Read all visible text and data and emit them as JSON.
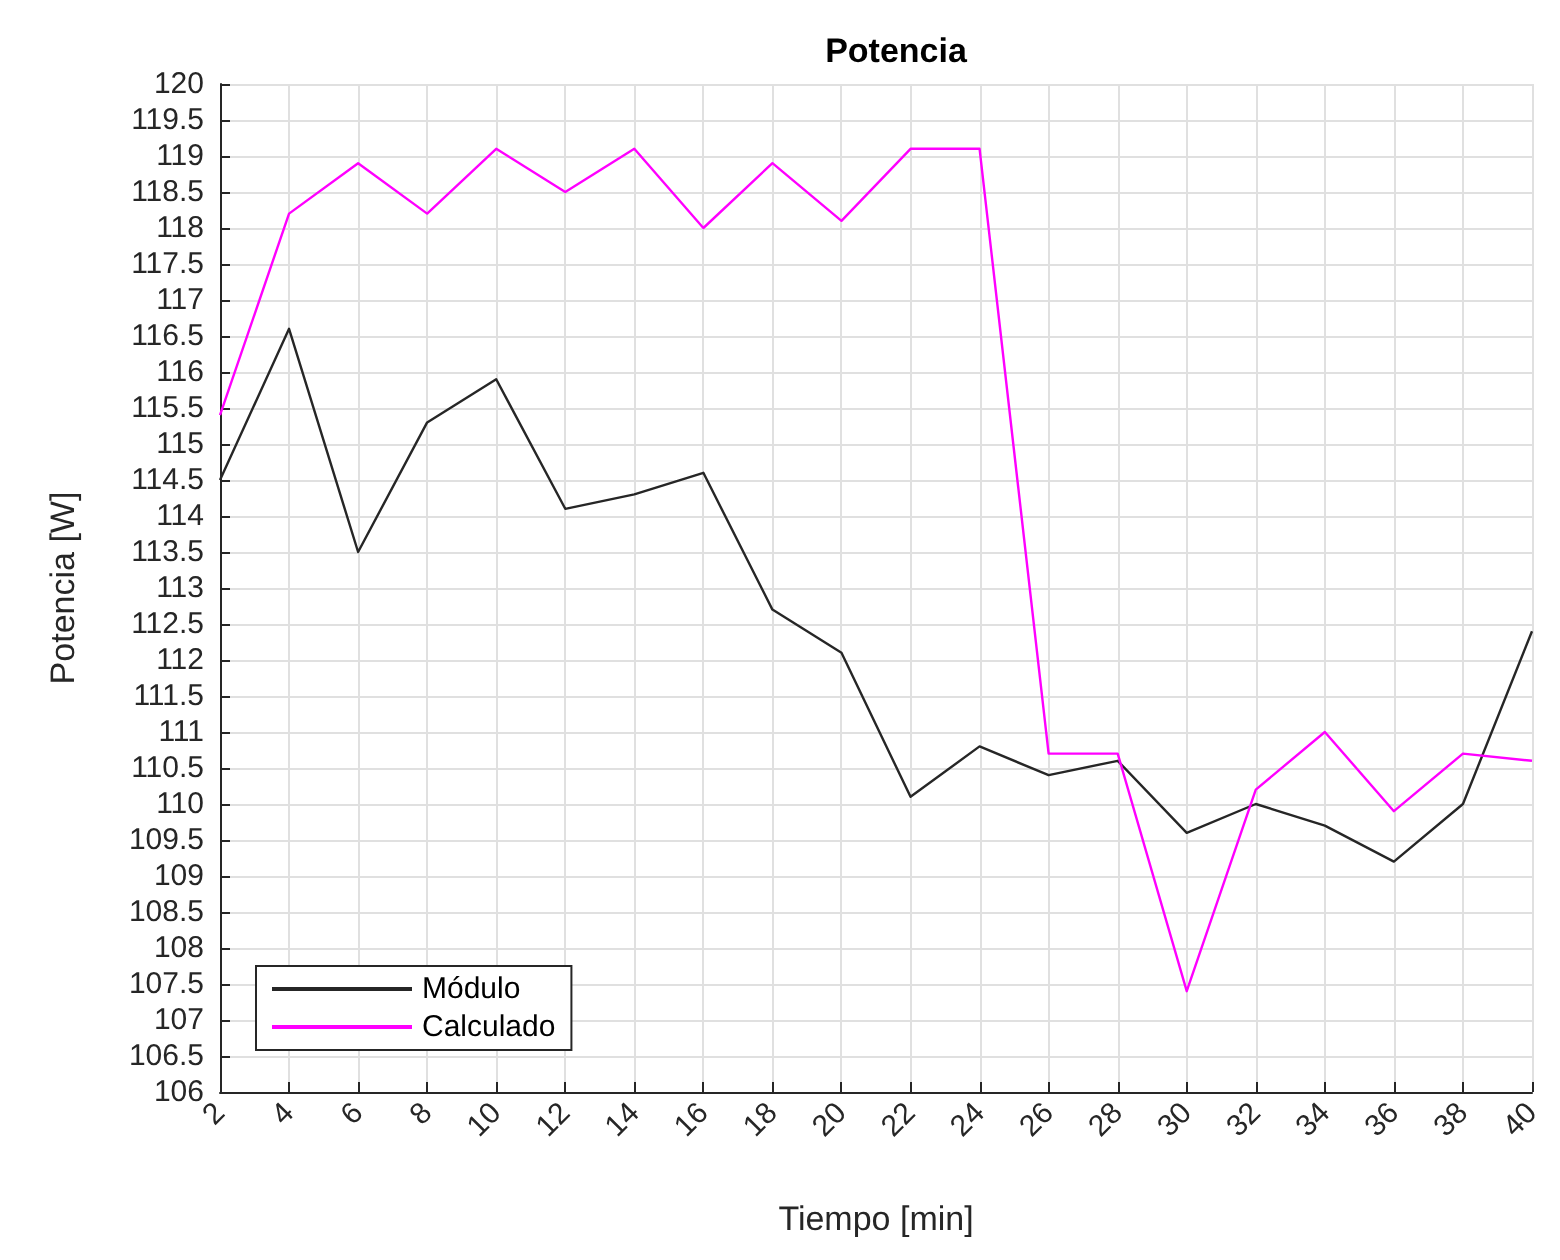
{
  "chart_data": {
    "type": "line",
    "title": "Potencia",
    "xlabel": "Tiempo [min]",
    "ylabel": "Potencia [W]",
    "x": [
      2,
      4,
      6,
      8,
      10,
      12,
      14,
      16,
      18,
      20,
      22,
      24,
      26,
      28,
      30,
      32,
      34,
      36,
      38,
      40
    ],
    "series": [
      {
        "name": "Módulo",
        "color": "#262626",
        "values": [
          114.5,
          116.6,
          113.5,
          115.3,
          115.9,
          114.1,
          114.3,
          114.6,
          112.7,
          112.1,
          110.1,
          110.8,
          110.4,
          110.6,
          109.6,
          110.0,
          109.7,
          109.2,
          110.0,
          112.4
        ]
      },
      {
        "name": "Calculado",
        "color": "#ff00ff",
        "values": [
          115.4,
          118.2,
          118.9,
          118.2,
          119.1,
          118.5,
          119.1,
          118.0,
          118.9,
          118.1,
          119.1,
          119.1,
          110.7,
          110.7,
          107.4,
          110.2,
          111.0,
          109.9,
          110.7,
          110.6
        ]
      }
    ],
    "xlim": [
      2,
      40
    ],
    "xticks": [
      2,
      4,
      6,
      8,
      10,
      12,
      14,
      16,
      18,
      20,
      22,
      24,
      26,
      28,
      30,
      32,
      34,
      36,
      38,
      40
    ],
    "ylim": [
      106,
      120
    ],
    "yticks": [
      106,
      106.5,
      107,
      107.5,
      108,
      108.5,
      109,
      109.5,
      110,
      110.5,
      111,
      111.5,
      112,
      112.5,
      113,
      113.5,
      114,
      114.5,
      115,
      115.5,
      116,
      116.5,
      117,
      117.5,
      118,
      118.5,
      119,
      119.5,
      120
    ],
    "grid": true,
    "legend": "bottom left",
    "marker": "none",
    "line_style": "solid"
  }
}
